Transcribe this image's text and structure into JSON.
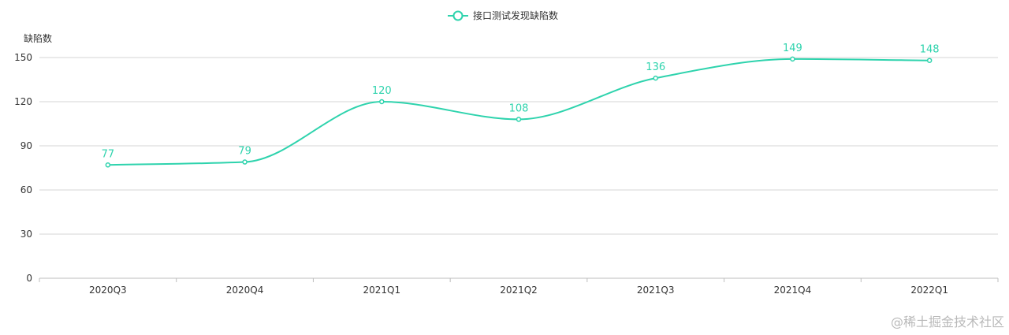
{
  "chart_data": {
    "type": "line",
    "categories": [
      "2020Q3",
      "2020Q4",
      "2021Q1",
      "2021Q2",
      "2021Q3",
      "2021Q4",
      "2022Q1"
    ],
    "series": [
      {
        "name": "接口测试发现缺陷数",
        "values": [
          77,
          79,
          120,
          108,
          136,
          149,
          148
        ]
      }
    ],
    "ylabel": "缺陷数",
    "ylim": [
      0,
      150
    ],
    "yticks": [
      0,
      30,
      60,
      90,
      120,
      150
    ],
    "grid": true,
    "smooth": true,
    "legend": "top-center",
    "data_labels": true
  },
  "colors": {
    "series": "#2ed3ad",
    "grid": "#d6d6d6",
    "axis": "#bdbdbd",
    "text": "#333333"
  },
  "watermark": "@稀土掘金技术社区"
}
